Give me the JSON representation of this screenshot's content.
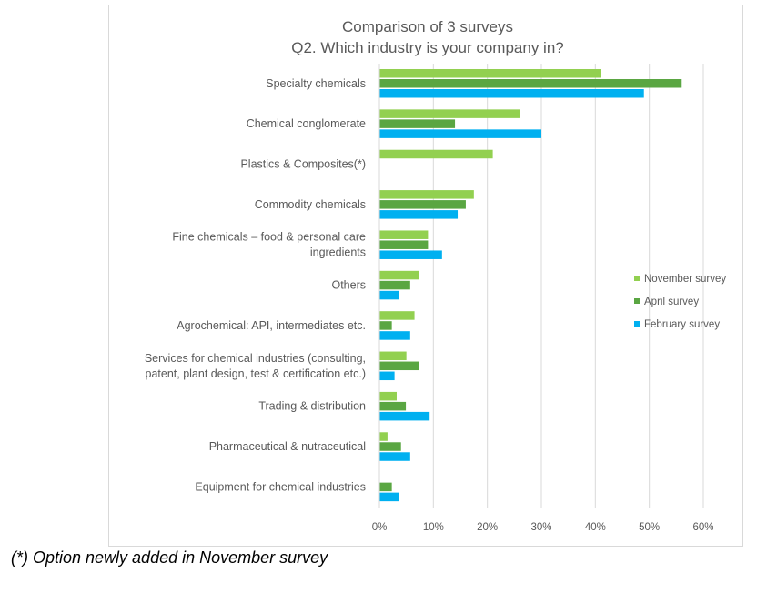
{
  "footnote": "(*) Option newly added in November survey",
  "chart_data": {
    "type": "bar",
    "orientation": "horizontal",
    "title": [
      "Comparison of 3 surveys",
      "Q2. Which industry is your company in?"
    ],
    "categories": [
      [
        "Specialty chemicals"
      ],
      [
        "Chemical conglomerate"
      ],
      [
        "Plastics & Composites(*)"
      ],
      [
        "Commodity chemicals"
      ],
      [
        "Fine chemicals – food & personal care",
        "ingredients"
      ],
      [
        "Others"
      ],
      [
        "Agrochemical: API, intermediates etc."
      ],
      [
        "Services for chemical industries (consulting,",
        "patent, plant design, test & certification etc.)"
      ],
      [
        "Trading & distribution"
      ],
      [
        "Pharmaceutical & nutraceutical"
      ],
      [
        "Equipment for chemical industries"
      ]
    ],
    "series": [
      {
        "name": "November survey",
        "color": "#92d050",
        "values": [
          41,
          26,
          21,
          17.5,
          9,
          7.3,
          6.5,
          5,
          3.2,
          1.5,
          null
        ]
      },
      {
        "name": "April survey",
        "color": "#5aa642",
        "values": [
          56,
          14,
          null,
          16,
          9,
          5.7,
          2.3,
          7.3,
          4.9,
          4,
          2.3
        ]
      },
      {
        "name": "February survey",
        "color": "#00b0f0",
        "values": [
          49,
          30,
          null,
          14.5,
          11.6,
          3.6,
          5.7,
          2.8,
          9.3,
          5.7,
          3.6
        ]
      }
    ],
    "x_ticks": [
      "0%",
      "10%",
      "20%",
      "30%",
      "40%",
      "50%",
      "60%"
    ],
    "xlim": [
      0,
      60
    ],
    "grid": true,
    "legend_position": "right"
  }
}
